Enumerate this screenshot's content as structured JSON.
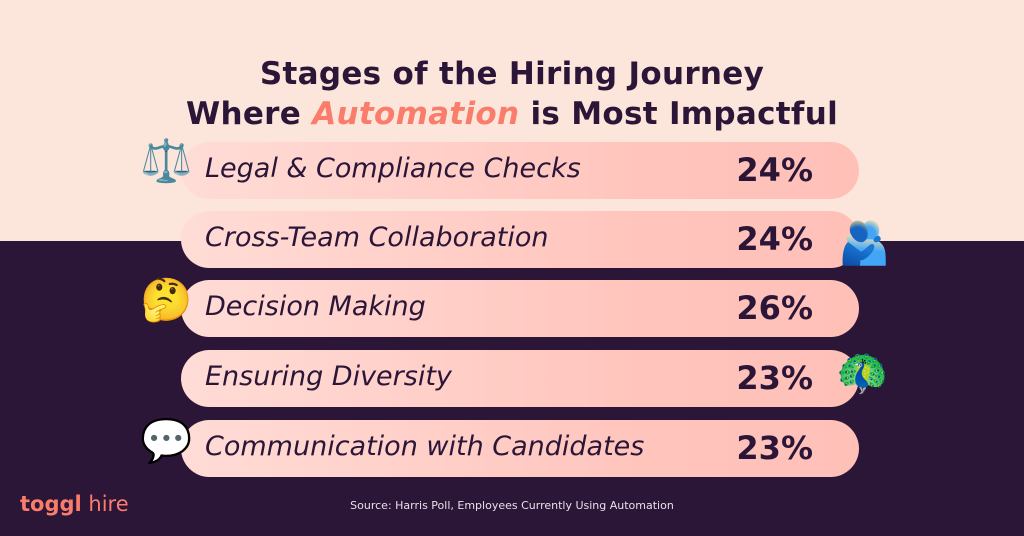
{
  "title_line1": "Stages of the Hiring Journey",
  "title_line2_pre": "Where ",
  "title_line2_accent": "Automation",
  "title_line2_post": " is Most Impactful",
  "colors": {
    "accent": "#fa7c6a",
    "dark": "#2b1638",
    "light": "#fce6dc",
    "pill": "#ffc4bc"
  },
  "chart_data": {
    "type": "bar",
    "categories": [
      "Legal & Compliance Checks",
      "Cross-Team Collaboration",
      "Decision Making",
      "Ensuring Diversity",
      "Communication with Candidates"
    ],
    "values": [
      24,
      24,
      26,
      23,
      23
    ],
    "value_labels": [
      "24%",
      "24%",
      "26%",
      "23%",
      "23%"
    ],
    "icons": [
      "balance-scale-icon",
      "people-hugging-icon",
      "thinking-face-icon",
      "peacock-icon",
      "speech-bubble-icon"
    ]
  },
  "emojis": [
    "⚖️",
    "🫂",
    "🤔",
    "🦚",
    "💬"
  ],
  "source": "Source: Harris Poll, Employees Currently Using Automation",
  "logo": {
    "bold": "toggl",
    "light": " hire"
  }
}
